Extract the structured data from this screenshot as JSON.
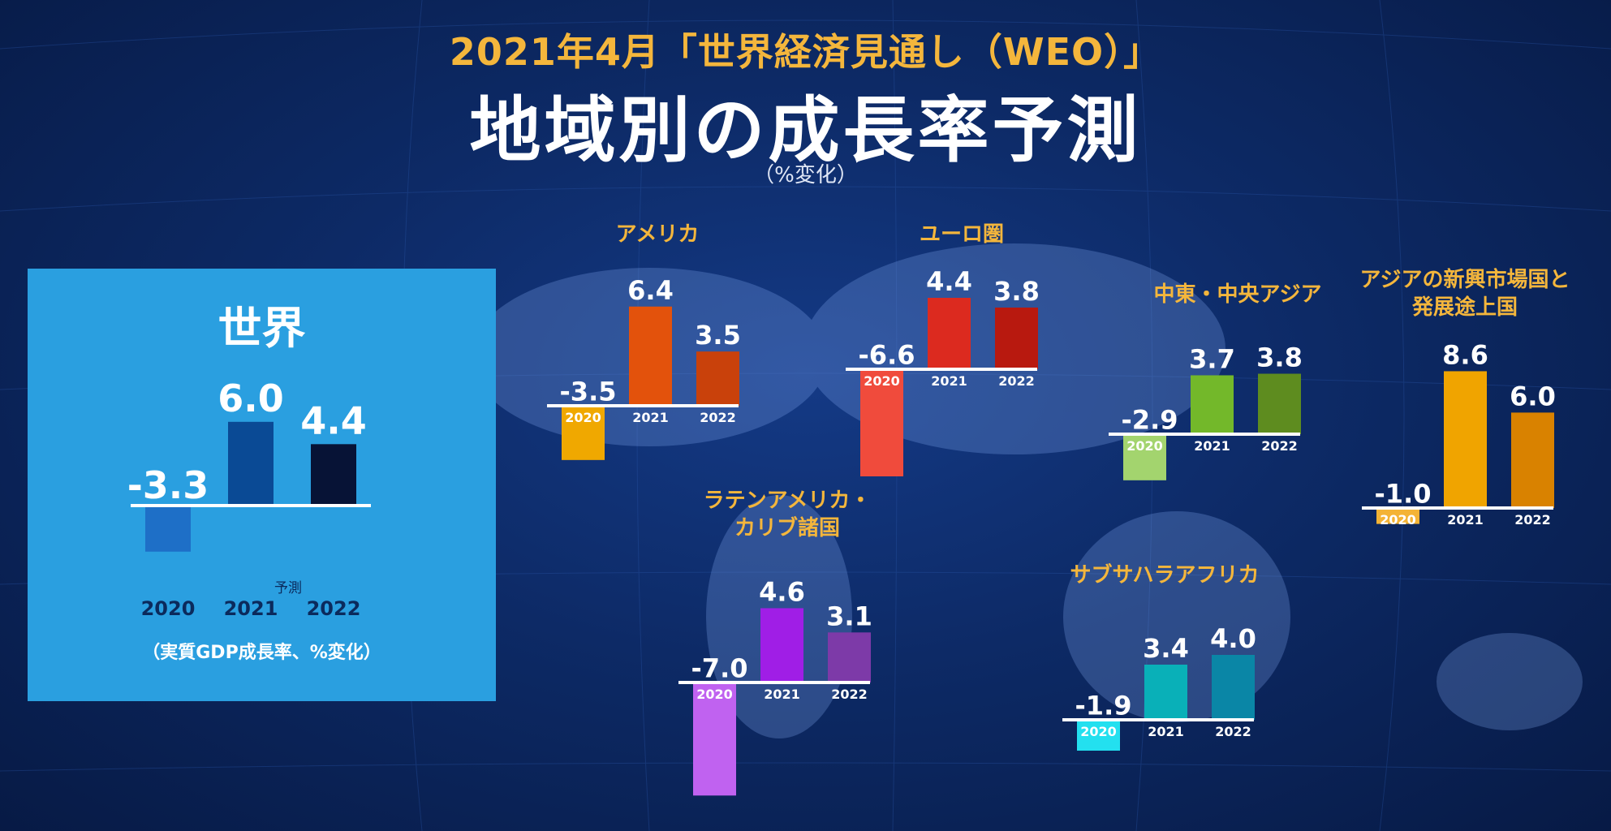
{
  "header": {
    "subtitle": "2021年4月「世界経済見通し（WEO）」",
    "title": "地域別の成長率予測",
    "unit": "（%変化）"
  },
  "world": {
    "title": "世界",
    "forecast_note": "予測",
    "unit_note": "（実質GDP成長率、%変化）"
  },
  "regions": {
    "americas": "アメリカ",
    "euro": "ユーロ圏",
    "mideast": "中東・中央アジア",
    "asia": "アジアの新興市場国と\n発展途上国",
    "latam": "ラテンアメリカ・\nカリブ諸国",
    "ssa": "サブサハラアフリカ"
  },
  "chart_data": [
    {
      "id": "world",
      "type": "bar",
      "title": "世界",
      "categories": [
        "2020",
        "2021",
        "2022"
      ],
      "values": [
        -3.3,
        6.0,
        4.4
      ],
      "value_labels": [
        "-3.3",
        "6.0",
        "4.4"
      ],
      "colors": [
        "#1e6fc7",
        "#0a4a95",
        "#071336"
      ]
    },
    {
      "id": "americas",
      "type": "bar",
      "title": "アメリカ",
      "categories": [
        "2020",
        "2021",
        "2022"
      ],
      "values": [
        -3.5,
        6.4,
        3.5
      ],
      "value_labels": [
        "-3.5",
        "6.4",
        "3.5"
      ],
      "colors": [
        "#f0a800",
        "#e3520c",
        "#c9410b"
      ]
    },
    {
      "id": "euro",
      "type": "bar",
      "title": "ユーロ圏",
      "categories": [
        "2020",
        "2021",
        "2022"
      ],
      "values": [
        -6.6,
        4.4,
        3.8
      ],
      "value_labels": [
        "-6.6",
        "4.4",
        "3.8"
      ],
      "colors": [
        "#f04b3c",
        "#dc2a1f",
        "#b8190f"
      ]
    },
    {
      "id": "mideast",
      "type": "bar",
      "title": "中東・中央アジア",
      "categories": [
        "2020",
        "2021",
        "2022"
      ],
      "values": [
        -2.9,
        3.7,
        3.8
      ],
      "value_labels": [
        "-2.9",
        "3.7",
        "3.8"
      ],
      "colors": [
        "#a3d46e",
        "#73b82a",
        "#5e8c1f"
      ]
    },
    {
      "id": "asia",
      "type": "bar",
      "title": "アジアの新興市場国と発展途上国",
      "categories": [
        "2020",
        "2021",
        "2022"
      ],
      "values": [
        -1.0,
        8.6,
        6.0
      ],
      "value_labels": [
        "-1.0",
        "8.6",
        "6.0"
      ],
      "colors": [
        "#f4b335",
        "#f0a400",
        "#d98200"
      ]
    },
    {
      "id": "latam",
      "type": "bar",
      "title": "ラテンアメリカ・カリブ諸国",
      "categories": [
        "2020",
        "2021",
        "2022"
      ],
      "values": [
        -7.0,
        4.6,
        3.1
      ],
      "value_labels": [
        "-7.0",
        "4.6",
        "3.1"
      ],
      "colors": [
        "#c062f0",
        "#a01ee6",
        "#7d3aa8"
      ]
    },
    {
      "id": "ssa",
      "type": "bar",
      "title": "サブサハラアフリカ",
      "categories": [
        "2020",
        "2021",
        "2022"
      ],
      "values": [
        -1.9,
        3.4,
        4.0
      ],
      "value_labels": [
        "-1.9",
        "3.4",
        "4.0"
      ],
      "colors": [
        "#23e0ef",
        "#09b0b8",
        "#0a86a6"
      ]
    }
  ]
}
